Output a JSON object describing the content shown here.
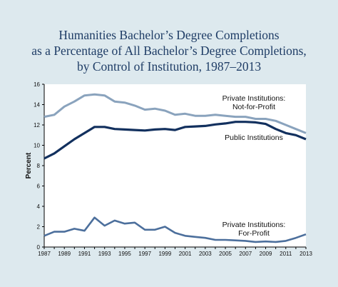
{
  "title": {
    "line1": "Humanities Bachelor’s Degree Completions",
    "line2": "as a Percentage of All Bachelor’s Degree Completions,",
    "line3": "by Control of Institution, 1987–2013"
  },
  "chart_data": {
    "type": "line",
    "ylabel": "Percent",
    "xlabel": "",
    "ylim": [
      0,
      16
    ],
    "xlim": [
      1987,
      2013
    ],
    "y_ticks": [
      "0",
      "2",
      "4",
      "6",
      "8",
      "10",
      "12",
      "14",
      "16"
    ],
    "x_ticks": [
      "1987",
      "1989",
      "1991",
      "1993",
      "1995",
      "1997",
      "1999",
      "2001",
      "2003",
      "2005",
      "2007",
      "2009",
      "2011",
      "2013"
    ],
    "grid": false,
    "legend": "annotations next to lines",
    "x": [
      1987,
      1988,
      1989,
      1990,
      1991,
      1992,
      1993,
      1994,
      1995,
      1996,
      1997,
      1998,
      1999,
      2000,
      2001,
      2002,
      2003,
      2004,
      2005,
      2006,
      2007,
      2008,
      2009,
      2010,
      2011,
      2012,
      2013
    ],
    "series": [
      {
        "label_lines": [
          "Private Institutions:",
          "Not-for-Profit"
        ],
        "color": "#8aa3bd",
        "values": [
          12.8,
          13.0,
          13.8,
          14.3,
          14.9,
          15.0,
          14.9,
          14.3,
          14.2,
          13.9,
          13.5,
          13.6,
          13.4,
          13.0,
          13.1,
          12.9,
          12.9,
          13.0,
          12.9,
          12.8,
          12.8,
          12.6,
          12.6,
          12.4,
          12.0,
          11.6,
          11.2
        ]
      },
      {
        "label_lines": [
          "Public Institutions"
        ],
        "color": "#12305e",
        "values": [
          8.7,
          9.2,
          9.9,
          10.6,
          11.2,
          11.8,
          11.8,
          11.6,
          11.55,
          11.5,
          11.45,
          11.55,
          11.6,
          11.5,
          11.8,
          11.85,
          11.9,
          12.05,
          12.15,
          12.3,
          12.3,
          12.25,
          12.1,
          11.6,
          11.2,
          11.0,
          10.6
        ]
      },
      {
        "label_lines": [
          "Private Institutions:",
          "For-Profit"
        ],
        "color": "#4c6f9c",
        "values": [
          1.1,
          1.5,
          1.5,
          1.8,
          1.6,
          2.9,
          2.1,
          2.6,
          2.3,
          2.4,
          1.7,
          1.7,
          2.0,
          1.4,
          1.1,
          1.0,
          0.9,
          0.7,
          0.7,
          0.65,
          0.6,
          0.5,
          0.55,
          0.5,
          0.6,
          0.9,
          1.25
        ]
      }
    ]
  }
}
